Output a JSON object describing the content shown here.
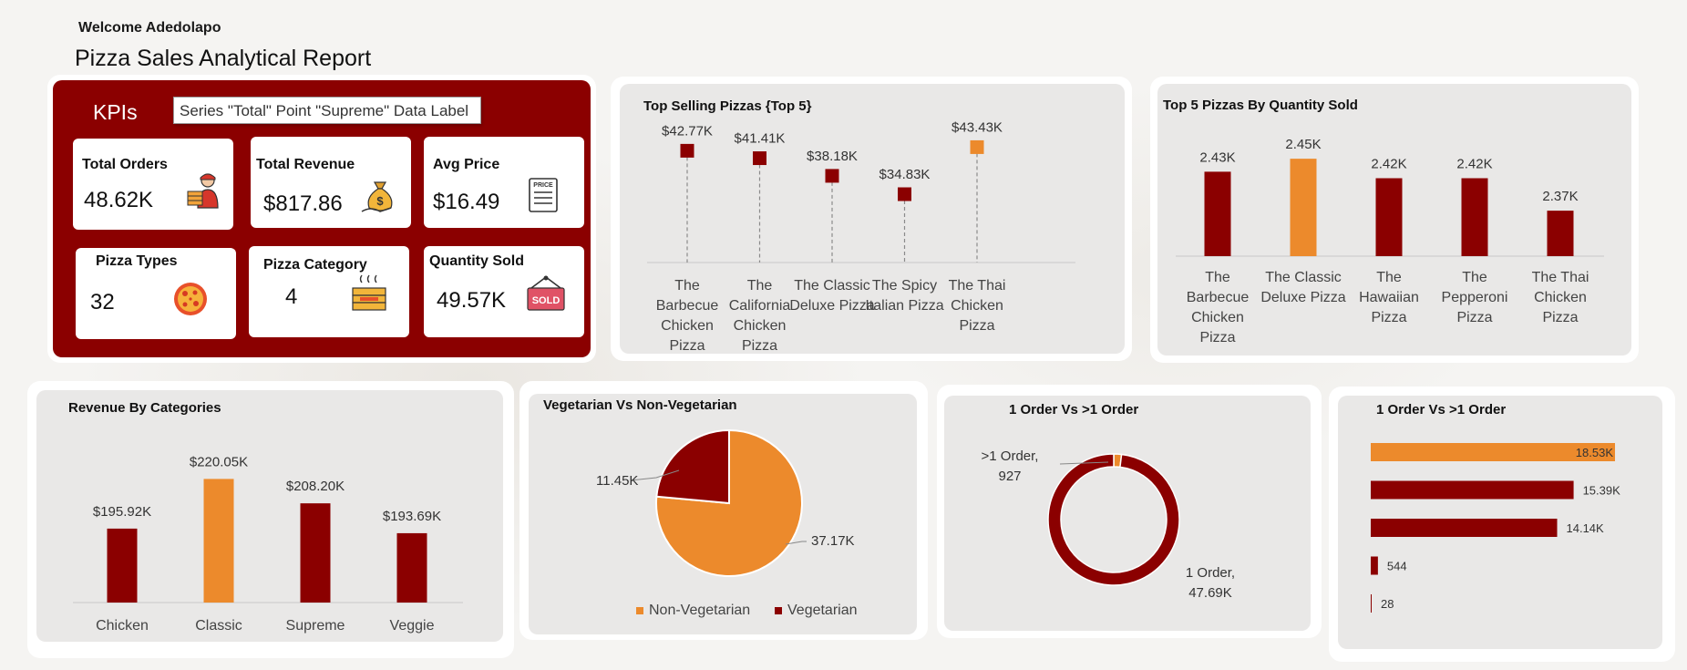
{
  "header": {
    "welcome": "Welcome Adedolapo",
    "title": "Pizza Sales Analytical Report"
  },
  "kpis": {
    "title": "KPIs",
    "tooltip": "Series \"Total\" Point \"Supreme\" Data Label",
    "cards": [
      {
        "label": "Total Orders",
        "value": "48.62K",
        "icon": "delivery-person-icon"
      },
      {
        "label": "Total Revenue",
        "value": "$817.86",
        "icon": "money-bag-icon"
      },
      {
        "label": "Avg Price",
        "value": "$16.49",
        "icon": "price-list-icon"
      },
      {
        "label": "Pizza Types",
        "value": "32",
        "icon": "pizza-icon"
      },
      {
        "label": "Pizza Category",
        "value": "4",
        "icon": "pizza-box-icon"
      },
      {
        "label": "Quantity Sold",
        "value": "49.57K",
        "icon": "sold-sign-icon"
      }
    ]
  },
  "colors": {
    "dark_red": "#8b0000",
    "orange": "#ec8a2c",
    "panel": "#e9e8e7"
  },
  "chart_data": [
    {
      "id": "top-selling",
      "type": "scatter",
      "title": "Top Selling Pizzas {Top 5}",
      "categories": [
        [
          "The",
          "Barbecue",
          "Chicken",
          "Pizza"
        ],
        [
          "The",
          "California",
          "Chicken",
          "Pizza"
        ],
        [
          "The Classic",
          "Deluxe Pizza"
        ],
        [
          "The Spicy",
          "Italian Pizza"
        ],
        [
          "The Thai",
          "Chicken",
          "Pizza"
        ]
      ],
      "values": [
        42.77,
        41.41,
        38.18,
        34.83,
        43.43
      ],
      "labels": [
        "$42.77K",
        "$41.41K",
        "$38.18K",
        "$34.83K",
        "$43.43K"
      ],
      "highlight_index": 4,
      "ylim": [
        0,
        50
      ]
    },
    {
      "id": "top-quantity",
      "type": "bar",
      "title": "Top 5 Pizzas By Quantity Sold",
      "categories": [
        [
          "The",
          "Barbecue",
          "Chicken",
          "Pizza"
        ],
        [
          "The Classic",
          "Deluxe Pizza"
        ],
        [
          "The",
          "Hawaiian",
          "Pizza"
        ],
        [
          "The",
          "Pepperoni",
          "Pizza"
        ],
        [
          "The Thai",
          "Chicken",
          "Pizza"
        ]
      ],
      "values": [
        2.43,
        2.45,
        2.42,
        2.42,
        2.37
      ],
      "labels": [
        "2.43K",
        "2.45K",
        "2.42K",
        "2.42K",
        "2.37K"
      ],
      "highlight_index": 1,
      "ylim": [
        2.3,
        2.46
      ]
    },
    {
      "id": "revenue-categories",
      "type": "bar",
      "title": "Revenue By Categories",
      "categories": [
        "Chicken",
        "Classic",
        "Supreme",
        "Veggie"
      ],
      "values": [
        195.92,
        220.05,
        208.2,
        193.69
      ],
      "labels": [
        "$195.92K",
        "$220.05K",
        "$208.20K",
        "$193.69K"
      ],
      "highlight_index": 1,
      "ylim": [
        160,
        222
      ]
    },
    {
      "id": "veg-pie",
      "type": "pie",
      "title": "Vegetarian Vs Non-Vegetarian",
      "categories": [
        "Non-Vegetarian",
        "Vegetarian"
      ],
      "values": [
        37.17,
        11.45
      ],
      "labels": [
        "37.17K",
        "11.45K"
      ],
      "legend": "bottom"
    },
    {
      "id": "order-donut",
      "type": "pie",
      "title": "1 Order Vs >1 Order",
      "categories": [
        ">1 Order",
        "1 Order"
      ],
      "values": [
        927,
        47690
      ],
      "labels": [
        ">1 Order,\n927",
        "1 Order,\n47.69K"
      ]
    },
    {
      "id": "order-bars",
      "type": "bar",
      "title": "1 Order Vs >1 Order",
      "orientation": "horizontal",
      "values": [
        18530,
        15390,
        14140,
        544,
        28
      ],
      "labels": [
        "18.53K",
        "15.39K",
        "14.14K",
        "544",
        "28"
      ],
      "highlight_index": 0,
      "xlim": [
        0,
        18530
      ]
    }
  ]
}
